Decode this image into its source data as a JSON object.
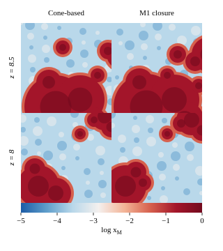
{
  "chart_data": {
    "type": "heatmap",
    "columns": [
      "Cone-based",
      "M1 closure"
    ],
    "rows": [
      "z = 8.5",
      "z = 8"
    ],
    "colormap": [
      "#1c5ca6",
      "#5f9ecb",
      "#b9d8ea",
      "#f4f0ee",
      "#f3b497",
      "#d6604d",
      "#a3152a",
      "#730a1e"
    ],
    "xlim": [
      -5,
      0
    ],
    "xticks": [
      {
        "value": -5,
        "label": "−5"
      },
      {
        "value": -4,
        "label": "−4"
      },
      {
        "value": -3,
        "label": "−3"
      },
      {
        "value": -2,
        "label": "−2"
      },
      {
        "value": -1,
        "label": "−1"
      },
      0
    ],
    "xlabel": [
      "log x",
      "M"
    ]
  }
}
